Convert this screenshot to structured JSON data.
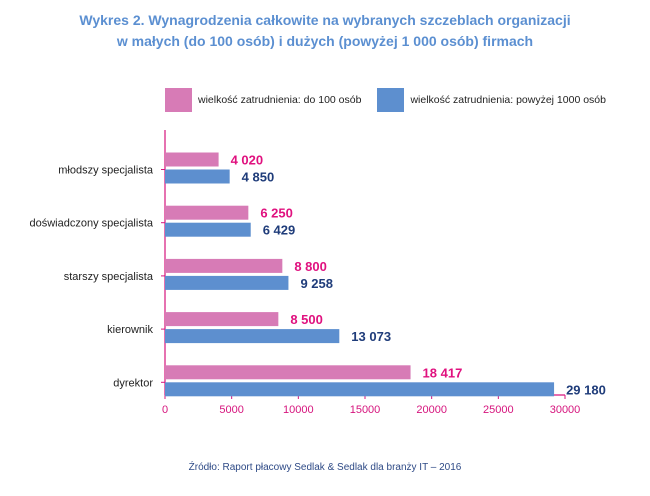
{
  "title_line1": "Wykres 2. Wynagrodzenia całkowite na wybranych szczeblach organizacji",
  "title_line2": "w małych (do 100 osób) i dużych (powyżej 1 000 osób) firmach",
  "source": "Źródło: Raport płacowy Sedlak & Sedlak dla branży IT – 2016",
  "colors": {
    "small": "#d77bb6",
    "large": "#5d8fcf",
    "small_label": "#e0117f",
    "large_label": "#1f3c7a",
    "axis": "#d6147d",
    "title": "#5b8fd1"
  },
  "chart_data": {
    "type": "bar",
    "orientation": "horizontal",
    "title": "Wykres 2. Wynagrodzenia całkowite na wybranych szczeblach organizacji w małych (do 100 osób) i dużych (powyżej 1 000 osób) firmach",
    "categories": [
      "młodszy specjalista",
      "doświadczony specjalista",
      "starszy specjalista",
      "kierownik",
      "dyrektor"
    ],
    "series": [
      {
        "name": "wielkość zatrudnienia: do 100 osób",
        "values": [
          4020,
          6250,
          8800,
          8500,
          18417
        ],
        "labels": [
          "4 020",
          "6 250",
          "8 800",
          "8 500",
          "18 417"
        ]
      },
      {
        "name": "wielkość zatrudnienia: powyżej 1000 osób",
        "values": [
          4850,
          6429,
          9258,
          13073,
          29180
        ],
        "labels": [
          "4 850",
          "6 429",
          "9 258",
          "13 073",
          "29 180"
        ]
      }
    ],
    "xlim": [
      0,
      30000
    ],
    "xticks": [
      0,
      5000,
      10000,
      15000,
      20000,
      25000,
      30000
    ],
    "xlabel": "",
    "ylabel": "",
    "grid": false,
    "legend_position": "top"
  }
}
